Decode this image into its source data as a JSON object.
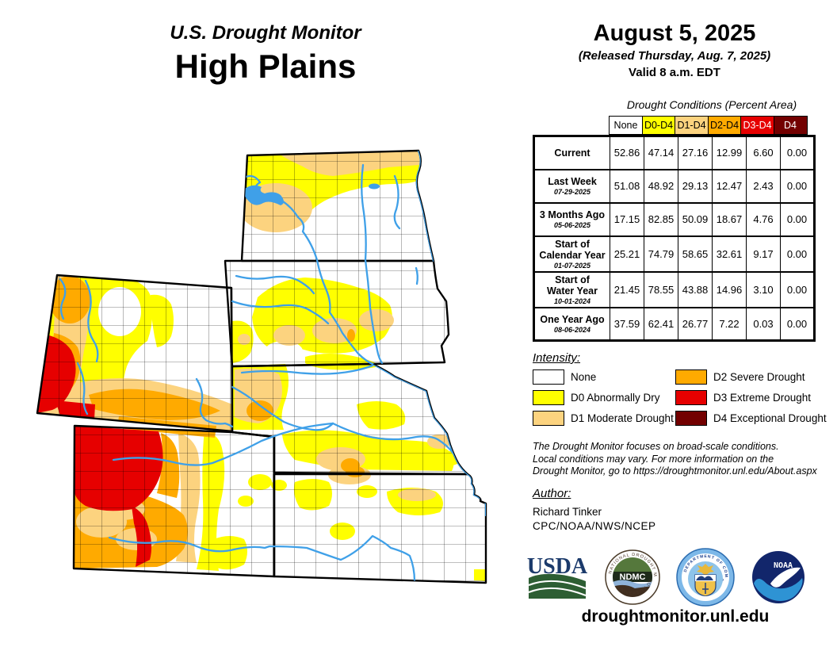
{
  "header": {
    "program": "U.S. Drought Monitor",
    "region": "High Plains"
  },
  "date_block": {
    "date": "August 5, 2025",
    "released": "(Released Thursday, Aug. 7, 2025)",
    "valid": "Valid 8 a.m. EDT"
  },
  "table": {
    "title": "Drought Conditions (Percent Area)",
    "columns": [
      {
        "label": "None",
        "bg": "#FFFFFF",
        "fg": "#000000"
      },
      {
        "label": "D0-D4",
        "bg": "#FFFF00",
        "fg": "#000000"
      },
      {
        "label": "D1-D4",
        "bg": "#FCD37F",
        "fg": "#000000"
      },
      {
        "label": "D2-D4",
        "bg": "#FFAA00",
        "fg": "#000000"
      },
      {
        "label": "D3-D4",
        "bg": "#E60000",
        "fg": "#FFFFFF"
      },
      {
        "label": "D4",
        "bg": "#730000",
        "fg": "#FFFFFF"
      }
    ],
    "rows": [
      {
        "label_lines": [
          "Current"
        ],
        "date": "",
        "values": [
          "52.86",
          "47.14",
          "27.16",
          "12.99",
          "6.60",
          "0.00"
        ]
      },
      {
        "label_lines": [
          "Last Week"
        ],
        "date": "07-29-2025",
        "values": [
          "51.08",
          "48.92",
          "29.13",
          "12.47",
          "2.43",
          "0.00"
        ]
      },
      {
        "label_lines": [
          "3 Months Ago"
        ],
        "date": "05-06-2025",
        "values": [
          "17.15",
          "82.85",
          "50.09",
          "18.67",
          "4.76",
          "0.00"
        ]
      },
      {
        "label_lines": [
          "Start of",
          "Calendar Year"
        ],
        "date": "01-07-2025",
        "values": [
          "25.21",
          "74.79",
          "58.65",
          "32.61",
          "9.17",
          "0.00"
        ]
      },
      {
        "label_lines": [
          "Start of",
          "Water Year"
        ],
        "date": "10-01-2024",
        "values": [
          "21.45",
          "78.55",
          "43.88",
          "14.96",
          "3.10",
          "0.00"
        ]
      },
      {
        "label_lines": [
          "One Year Ago"
        ],
        "date": "08-06-2024",
        "values": [
          "37.59",
          "62.41",
          "26.77",
          "7.22",
          "0.03",
          "0.00"
        ]
      }
    ]
  },
  "legend": {
    "title": "Intensity:",
    "left": [
      {
        "label": "None",
        "color": "#FFFFFF"
      },
      {
        "label": "D0 Abnormally Dry",
        "color": "#FFFF00"
      },
      {
        "label": "D1 Moderate Drought",
        "color": "#FCD37F"
      }
    ],
    "right": [
      {
        "label": "D2 Severe Drought",
        "color": "#FFAA00"
      },
      {
        "label": "D3 Extreme Drought",
        "color": "#E60000"
      },
      {
        "label": "D4 Exceptional Drought",
        "color": "#730000"
      }
    ]
  },
  "notes_lines": [
    "The Drought Monitor focuses on broad-scale conditions.",
    "Local conditions may vary. For more information on the",
    "Drought Monitor, go to https://droughtmonitor.unl.edu/About.aspx"
  ],
  "author": {
    "title": "Author:",
    "name": "Richard Tinker",
    "org": "CPC/NOAA/NWS/NCEP"
  },
  "logos": {
    "usda": "USDA",
    "ndmc": "NDMC",
    "ndmc_ring_top": "NATIONAL DROUGHT MITIGATION CENTER",
    "ndmc_ring_bottom": "UNIVERSITY OF NEBRASKA",
    "doc_ring_top": "DEPARTMENT OF COMMERCE",
    "doc_ring_bottom": "UNITED STATES OF AMERICA",
    "noaa": "NOAA"
  },
  "footer": {
    "url": "droughtmonitor.unl.edu"
  },
  "map": {
    "states": [
      "North Dakota",
      "South Dakota",
      "Wyoming",
      "Nebraska",
      "Colorado",
      "Kansas"
    ],
    "intensity_colors": {
      "none": "#FFFFFF",
      "d0": "#FFFF00",
      "d1": "#FCD37F",
      "d2": "#FFAA00",
      "d3": "#E60000",
      "d4": "#730000"
    },
    "river_color": "#3FA0E8"
  }
}
